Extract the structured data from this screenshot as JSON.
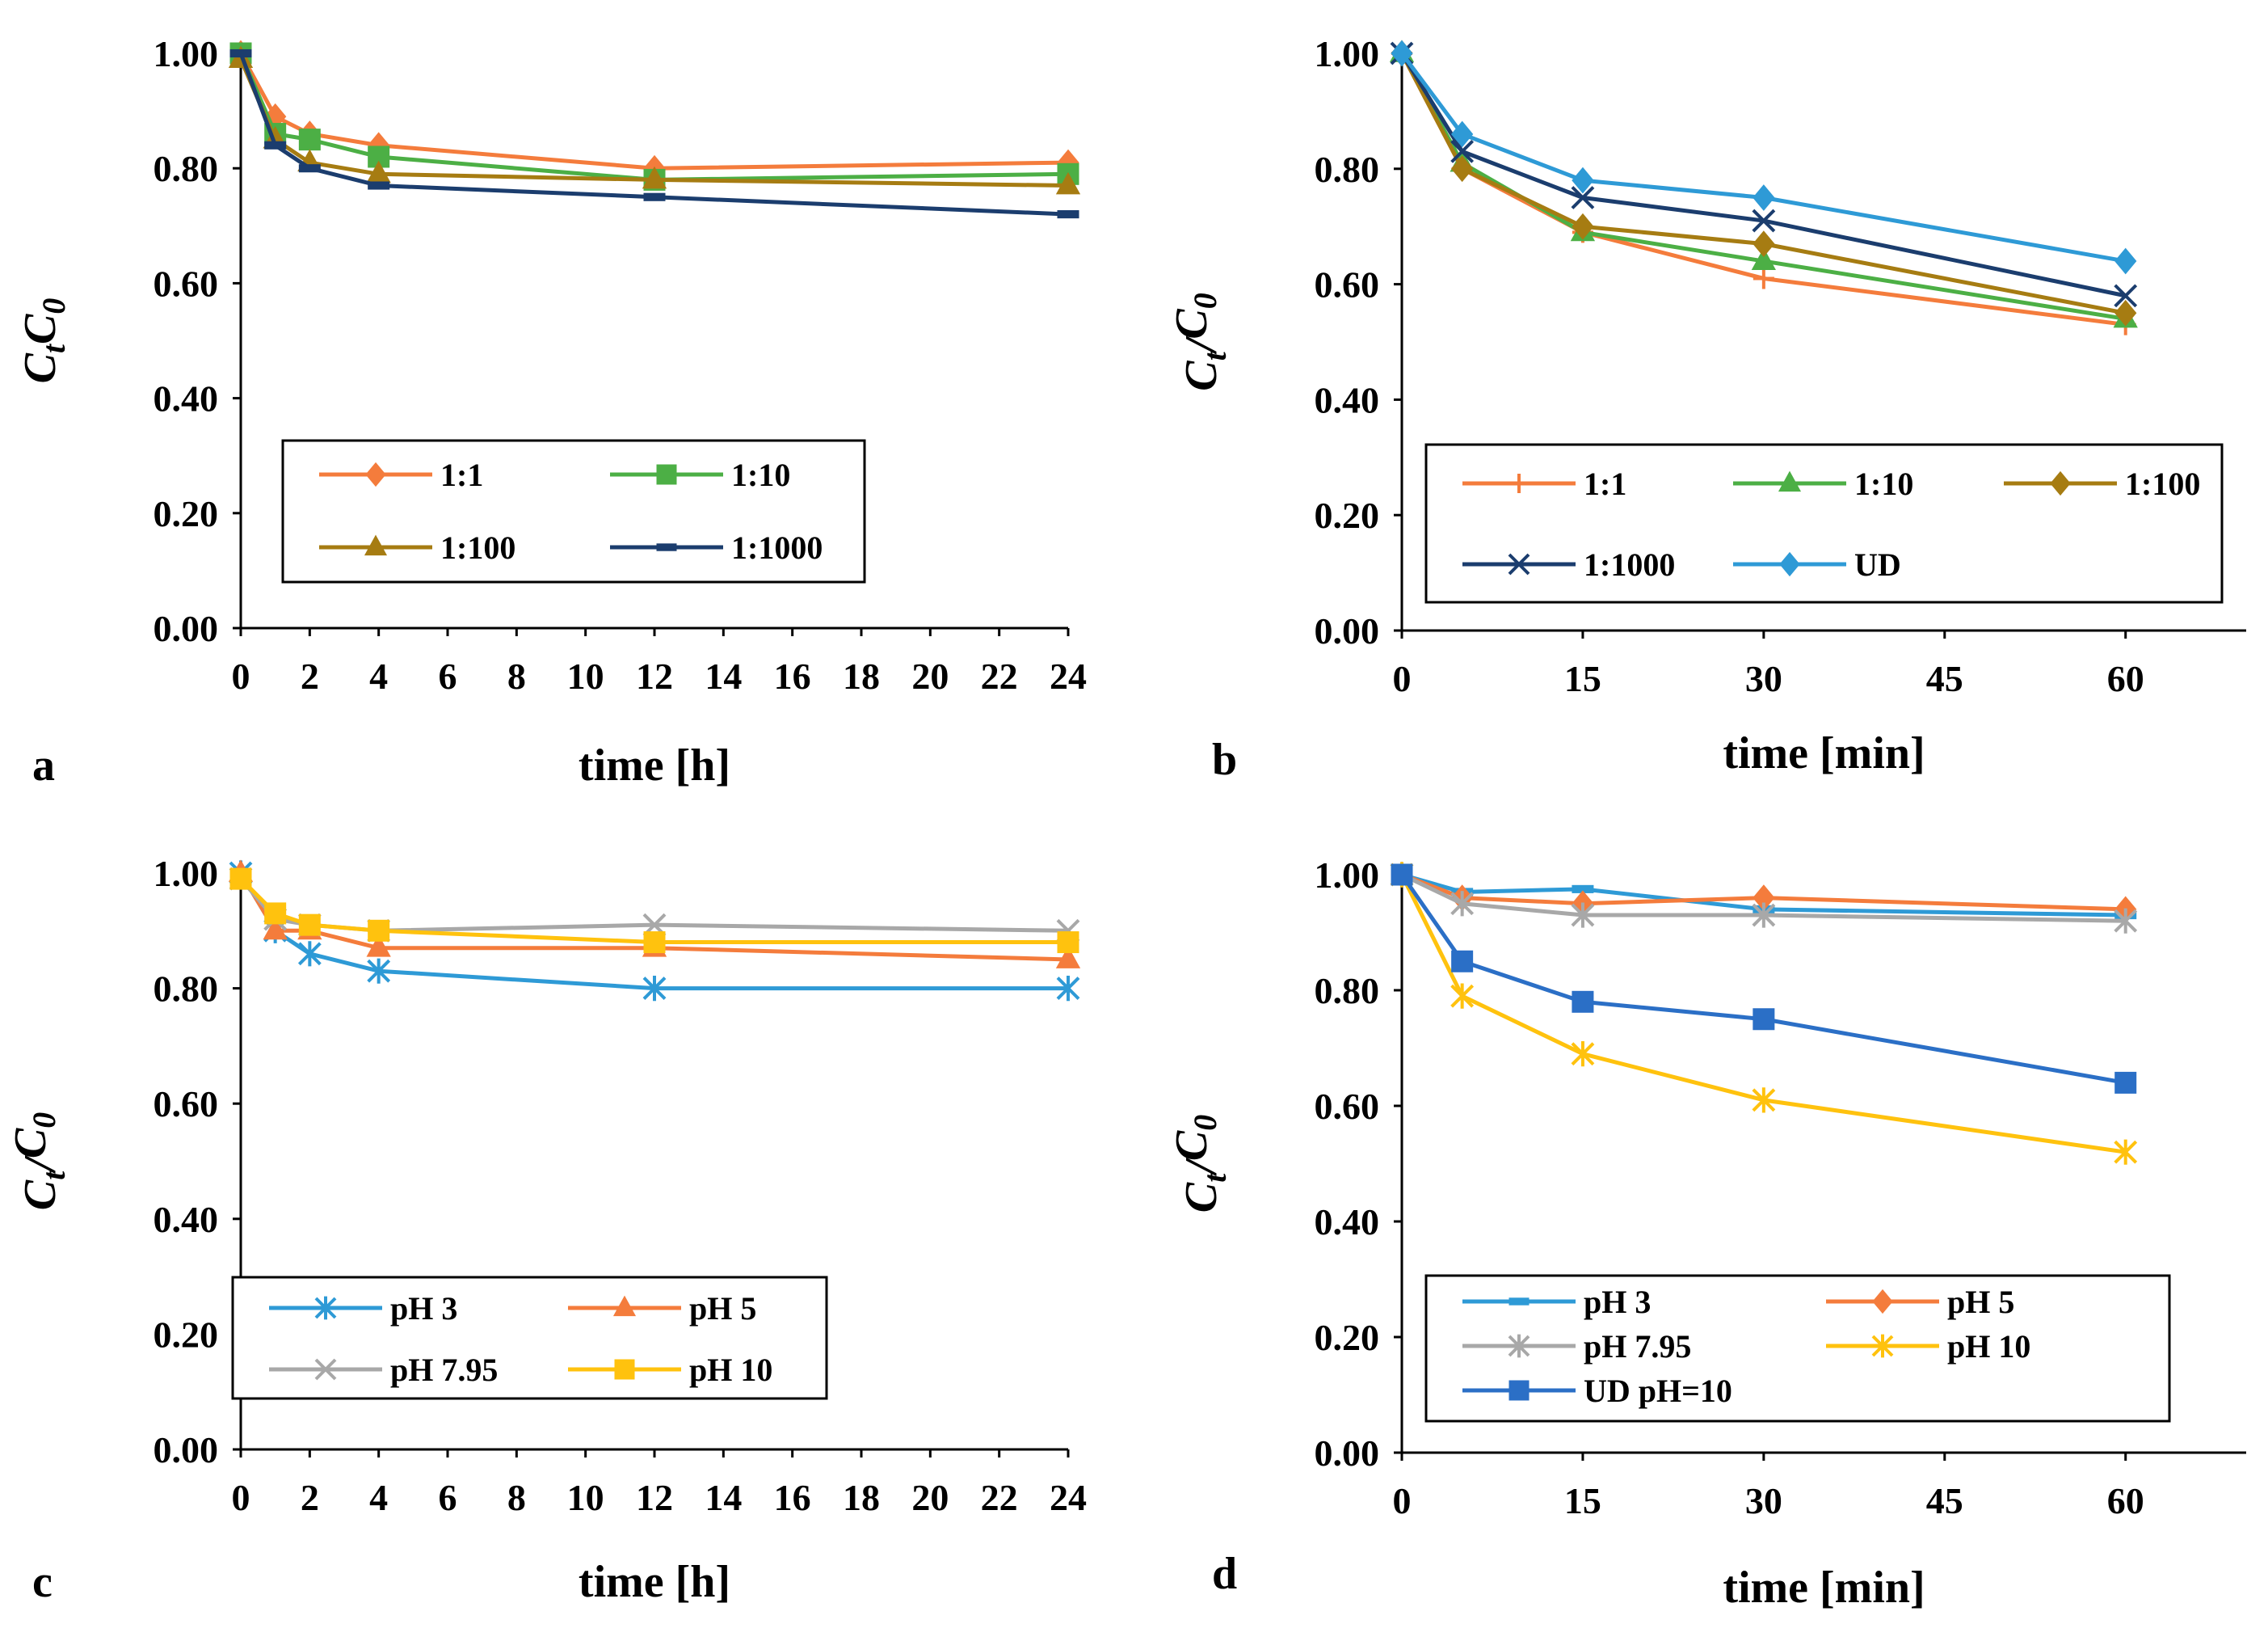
{
  "chart_data": [
    {
      "type": "line",
      "panel_letter": "a",
      "xlabel": "time [h]",
      "ylabel": {
        "main": "C",
        "sub1": "t",
        "sep": "",
        "main2": "C",
        "sub2": "0"
      },
      "xlim": [
        0,
        24
      ],
      "ylim": [
        0,
        1
      ],
      "xticks": [
        "0",
        "2",
        "4",
        "6",
        "8",
        "10",
        "12",
        "14",
        "16",
        "18",
        "20",
        "22",
        "24"
      ],
      "yticks": [
        "0.00",
        "0.20",
        "0.40",
        "0.60",
        "0.80",
        "1.00"
      ],
      "legend_position": "bottom-left",
      "legend_columns": 2,
      "x": [
        0,
        1,
        2,
        4,
        12,
        24
      ],
      "series": [
        {
          "name": "1:1",
          "color": "#f47c3c",
          "marker": "diamond",
          "values": [
            1.0,
            0.89,
            0.86,
            0.84,
            0.8,
            0.81
          ]
        },
        {
          "name": "1:10",
          "color": "#4caf45",
          "marker": "square",
          "values": [
            1.0,
            0.86,
            0.85,
            0.82,
            0.78,
            0.79
          ]
        },
        {
          "name": "1:100",
          "color": "#a67c12",
          "marker": "triangle",
          "values": [
            0.99,
            0.85,
            0.81,
            0.79,
            0.78,
            0.77
          ]
        },
        {
          "name": "1:1000",
          "color": "#1b3d6e",
          "marker": "dash",
          "values": [
            1.0,
            0.84,
            0.8,
            0.77,
            0.75,
            0.72
          ]
        }
      ]
    },
    {
      "type": "line",
      "panel_letter": "b",
      "xlabel": "time [min]",
      "ylabel": {
        "main": "C",
        "sub1": "t",
        "sep": "/",
        "main2": "C",
        "sub2": "0"
      },
      "xlim": [
        0,
        70
      ],
      "ylim": [
        0,
        1
      ],
      "xticks": [
        "0",
        "15",
        "30",
        "45",
        "60"
      ],
      "xtick_values": [
        0,
        15,
        30,
        45,
        60
      ],
      "yticks": [
        "0.00",
        "0.20",
        "0.40",
        "0.60",
        "0.80",
        "1.00"
      ],
      "legend_position": "bottom",
      "legend_columns": 3,
      "x": [
        0,
        5,
        15,
        30,
        60
      ],
      "series": [
        {
          "name": "1:1",
          "color": "#f47c3c",
          "marker": "plus",
          "values": [
            1.0,
            0.8,
            0.69,
            0.61,
            0.53
          ]
        },
        {
          "name": "1:10",
          "color": "#4caf45",
          "marker": "triangle",
          "values": [
            1.0,
            0.81,
            0.69,
            0.64,
            0.54
          ]
        },
        {
          "name": "1:100",
          "color": "#a67c12",
          "marker": "diamond",
          "values": [
            1.0,
            0.8,
            0.7,
            0.67,
            0.55
          ]
        },
        {
          "name": "1:1000",
          "color": "#1b3d6e",
          "marker": "x",
          "values": [
            1.0,
            0.83,
            0.75,
            0.71,
            0.58
          ]
        },
        {
          "name": "UD",
          "color": "#2e9ad6",
          "marker": "diamond",
          "values": [
            1.0,
            0.86,
            0.78,
            0.75,
            0.64
          ]
        }
      ]
    },
    {
      "type": "line",
      "panel_letter": "c",
      "xlabel": "time [h]",
      "ylabel": {
        "main": "C",
        "sub1": "t",
        "sep": "/",
        "main2": "C",
        "sub2": "0"
      },
      "xlim": [
        0,
        24
      ],
      "ylim": [
        0,
        1
      ],
      "xticks": [
        "0",
        "2",
        "4",
        "6",
        "8",
        "10",
        "12",
        "14",
        "16",
        "18",
        "20",
        "22",
        "24"
      ],
      "yticks": [
        "0.00",
        "0.20",
        "0.40",
        "0.60",
        "0.80",
        "1.00"
      ],
      "legend_position": "bottom-left",
      "legend_columns": 2,
      "x": [
        0,
        1,
        2,
        4,
        12,
        24
      ],
      "series": [
        {
          "name": "pH 3",
          "color": "#2e9ad6",
          "marker": "asterisk",
          "values": [
            1.0,
            0.9,
            0.86,
            0.83,
            0.8,
            0.8
          ]
        },
        {
          "name": "pH 5",
          "color": "#f47c3c",
          "marker": "triangle",
          "values": [
            1.0,
            0.9,
            0.9,
            0.87,
            0.87,
            0.85
          ]
        },
        {
          "name": "pH 7.95",
          "color": "#a8a8a8",
          "marker": "x",
          "values": [
            0.99,
            0.92,
            0.91,
            0.9,
            0.91,
            0.9
          ]
        },
        {
          "name": "pH 10",
          "color": "#ffc20e",
          "marker": "square",
          "values": [
            0.99,
            0.93,
            0.91,
            0.9,
            0.88,
            0.88
          ]
        }
      ]
    },
    {
      "type": "line",
      "panel_letter": "d",
      "xlabel": "time [min]",
      "ylabel": {
        "main": "C",
        "sub1": "t",
        "sep": "/",
        "main2": "C",
        "sub2": "0"
      },
      "xlim": [
        0,
        70
      ],
      "ylim": [
        0,
        1
      ],
      "xticks": [
        "0",
        "15",
        "30",
        "45",
        "60"
      ],
      "xtick_values": [
        0,
        15,
        30,
        45,
        60
      ],
      "yticks": [
        "0.00",
        "0.20",
        "0.40",
        "0.60",
        "0.80",
        "1.00"
      ],
      "legend_position": "bottom",
      "legend_columns": 2,
      "x": [
        0,
        5,
        15,
        30,
        60
      ],
      "series": [
        {
          "name": "pH 3",
          "color": "#2e9ad6",
          "marker": "dash",
          "values": [
            1.0,
            0.97,
            0.975,
            0.94,
            0.93
          ]
        },
        {
          "name": "pH 5",
          "color": "#f47c3c",
          "marker": "diamond",
          "values": [
            1.0,
            0.96,
            0.95,
            0.96,
            0.94
          ]
        },
        {
          "name": "pH 7.95",
          "color": "#a8a8a8",
          "marker": "asterisk",
          "values": [
            1.0,
            0.95,
            0.93,
            0.93,
            0.92
          ]
        },
        {
          "name": "pH 10",
          "color": "#ffc20e",
          "marker": "asterisk",
          "values": [
            1.0,
            0.79,
            0.69,
            0.61,
            0.52
          ]
        },
        {
          "name": "UD pH=10",
          "color": "#2b6fc6",
          "marker": "square",
          "values": [
            1.0,
            0.85,
            0.78,
            0.75,
            0.64
          ]
        }
      ]
    }
  ]
}
